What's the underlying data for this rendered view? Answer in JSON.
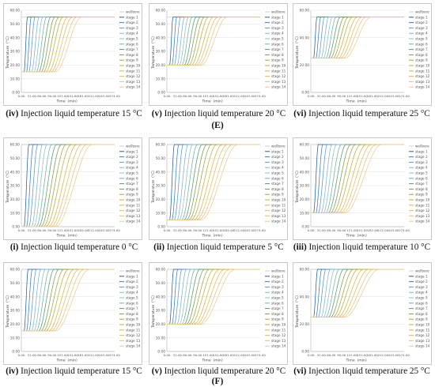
{
  "group_labels": [
    "(E)",
    "(F)"
  ],
  "colors": {
    "wellbore": "#cfcfcf",
    "stages": [
      "#1f5fa8",
      "#3a7dc7",
      "#5b97d0",
      "#7fb1d6",
      "#8cc0bf",
      "#6fb39a",
      "#4f9b73",
      "#7e9a4a",
      "#9fa63f",
      "#bfae3a",
      "#d8b443",
      "#e3bb5e",
      "#e8c377",
      "#eccb8d"
    ]
  },
  "chart_data": [
    {
      "id": "E-iv",
      "group": "E",
      "caption_num": "(iv)",
      "caption_text": " Injection liquid temperature 15 °C",
      "type": "line",
      "xlabel": "Time（min）",
      "ylabel": "Temperature（°C）",
      "ylim": [
        0,
        60
      ],
      "y_ticks": [
        "0.00",
        "10.00",
        "20.00",
        "30.00",
        "40.00",
        "50.00",
        "60.00"
      ],
      "x_ticks": [
        "0.00",
        "31.00",
        "60.00",
        "90.00",
        "121.00",
        "151.00",
        "181.00",
        "212.00",
        "243.00",
        "274.00"
      ],
      "series": [
        {
          "name": "wellbore"
        },
        {
          "name": "stage 1"
        },
        {
          "name": "stage 2"
        },
        {
          "name": "stage 3"
        },
        {
          "name": "stage 4"
        },
        {
          "name": "stage 5"
        },
        {
          "name": "stage 6"
        },
        {
          "name": "stage 7"
        },
        {
          "name": "stage 8"
        },
        {
          "name": "stage 9"
        },
        {
          "name": "stage 10"
        },
        {
          "name": "stage 11"
        },
        {
          "name": "stage 12"
        },
        {
          "name": "stage 13"
        },
        {
          "name": "stage 14"
        }
      ],
      "inj_temp": 15,
      "final_temp": 55,
      "stage_start_min": [
        8,
        15,
        22,
        30,
        37,
        44,
        51,
        58,
        65,
        72,
        80,
        87,
        94,
        101
      ],
      "stage_ramp_min": [
        10,
        14,
        18,
        22,
        26,
        30,
        35,
        40,
        45,
        50,
        56,
        62,
        68,
        75
      ]
    },
    {
      "id": "E-v",
      "group": "E",
      "caption_num": "(v)",
      "caption_text": " Injection liquid temperature 20 °C",
      "type": "line",
      "xlabel": "Time（min）",
      "ylabel": "Temperature（°C）",
      "ylim": [
        0,
        60
      ],
      "y_ticks": [
        "0.00",
        "10.00",
        "20.00",
        "30.00",
        "40.00",
        "50.00",
        "60.00"
      ],
      "x_ticks": [
        "0.00",
        "31.00",
        "60.00",
        "90.00",
        "121.00",
        "151.00",
        "181.00",
        "212.00",
        "243.00",
        "274.00"
      ],
      "series": [
        {
          "name": "wellbore"
        },
        {
          "name": "stage 1"
        },
        {
          "name": "stage 2"
        },
        {
          "name": "stage 3"
        },
        {
          "name": "stage 4"
        },
        {
          "name": "stage 5"
        },
        {
          "name": "stage 6"
        },
        {
          "name": "stage 7"
        },
        {
          "name": "stage 8"
        },
        {
          "name": "stage 9"
        },
        {
          "name": "stage 10"
        },
        {
          "name": "stage 11"
        },
        {
          "name": "stage 12"
        },
        {
          "name": "stage 13"
        },
        {
          "name": "stage 14"
        }
      ],
      "inj_temp": 20,
      "final_temp": 55,
      "stage_start_min": [
        8,
        15,
        22,
        30,
        37,
        44,
        51,
        58,
        65,
        72,
        80,
        87,
        94,
        101
      ],
      "stage_ramp_min": [
        10,
        14,
        18,
        22,
        26,
        30,
        35,
        40,
        45,
        50,
        56,
        62,
        68,
        75
      ]
    },
    {
      "id": "E-vi",
      "group": "E",
      "caption_num": "(vi)",
      "caption_text": " Injection liquid temperature 25 °C",
      "type": "line",
      "xlabel": "Time（min）",
      "ylabel": "Temperature（°C）",
      "ylim": [
        0,
        60
      ],
      "y_ticks": [
        "0.00",
        "20.00",
        "40.00",
        "60.00"
      ],
      "x_ticks": [
        "0.00",
        "31.00",
        "60.00",
        "90.00",
        "121.00",
        "151.00",
        "181.00",
        "212.00",
        "243.00",
        "274.00"
      ],
      "series": [
        {
          "name": "wellbore"
        },
        {
          "name": "stage 1"
        },
        {
          "name": "stage 2"
        },
        {
          "name": "stage 3"
        },
        {
          "name": "stage 4"
        },
        {
          "name": "stage 5"
        },
        {
          "name": "stage 6"
        },
        {
          "name": "stage 7"
        },
        {
          "name": "stage 8"
        },
        {
          "name": "stage 9"
        },
        {
          "name": "stage 10"
        },
        {
          "name": "stage 11"
        },
        {
          "name": "stage 12"
        },
        {
          "name": "stage 13"
        },
        {
          "name": "stage 14"
        }
      ],
      "inj_temp": 25,
      "final_temp": 55,
      "stage_start_min": [
        8,
        15,
        22,
        30,
        37,
        44,
        51,
        58,
        65,
        72,
        80,
        87,
        94,
        101
      ],
      "stage_ramp_min": [
        10,
        14,
        18,
        22,
        26,
        30,
        35,
        40,
        45,
        50,
        56,
        62,
        68,
        75
      ]
    },
    {
      "id": "F-i",
      "group": "F",
      "caption_num": "(i)",
      "caption_text": " Injection liquid temperature 0 °C",
      "type": "line",
      "xlabel": "Time（min）",
      "ylabel": "Temperature（°C）",
      "ylim": [
        0,
        60
      ],
      "y_ticks": [
        "0.00",
        "10.00",
        "20.00",
        "30.00",
        "40.00",
        "50.00",
        "60.00"
      ],
      "x_ticks": [
        "0.00",
        "31.00",
        "60.00",
        "90.00",
        "121.00",
        "151.00",
        "182.00",
        "212.00",
        "243.00",
        "274.00"
      ],
      "series": [
        {
          "name": "wellbore"
        },
        {
          "name": "stage 1"
        },
        {
          "name": "stage 2"
        },
        {
          "name": "stage 3"
        },
        {
          "name": "stage 4"
        },
        {
          "name": "stage 5"
        },
        {
          "name": "stage 6"
        },
        {
          "name": "stage 7"
        },
        {
          "name": "stage 8"
        },
        {
          "name": "stage 9"
        },
        {
          "name": "stage 10"
        },
        {
          "name": "stage 11"
        },
        {
          "name": "stage 12"
        },
        {
          "name": "stage 13"
        },
        {
          "name": "stage 14"
        }
      ],
      "inj_temp": 0,
      "final_temp": 60,
      "stage_start_min": [
        8,
        15,
        22,
        30,
        37,
        44,
        51,
        58,
        65,
        72,
        80,
        87,
        94,
        101
      ],
      "stage_ramp_min": [
        14,
        20,
        26,
        32,
        38,
        45,
        52,
        59,
        66,
        74,
        82,
        90,
        98,
        106
      ]
    },
    {
      "id": "F-ii",
      "group": "F",
      "caption_num": "(ii)",
      "caption_text": " Injection liquid temperature 5 °C",
      "type": "line",
      "xlabel": "Time（min）",
      "ylabel": "Temperature（°C）",
      "ylim": [
        0,
        60
      ],
      "y_ticks": [
        "0.00",
        "10.00",
        "20.00",
        "30.00",
        "40.00",
        "50.00",
        "60.00"
      ],
      "x_ticks": [
        "0.00",
        "31.00",
        "60.00",
        "90.00",
        "121.00",
        "151.00",
        "182.00",
        "212.00",
        "243.00",
        "274.00"
      ],
      "series": [
        {
          "name": "wellbore"
        },
        {
          "name": "stage 1"
        },
        {
          "name": "stage 2"
        },
        {
          "name": "stage 3"
        },
        {
          "name": "stage 4"
        },
        {
          "name": "stage 5"
        },
        {
          "name": "stage 6"
        },
        {
          "name": "stage 7"
        },
        {
          "name": "stage 8"
        },
        {
          "name": "stage 9"
        },
        {
          "name": "stage 10"
        },
        {
          "name": "stage 11"
        },
        {
          "name": "stage 12"
        },
        {
          "name": "stage 13"
        },
        {
          "name": "stage 14"
        }
      ],
      "inj_temp": 5,
      "final_temp": 60,
      "stage_start_min": [
        8,
        15,
        22,
        30,
        37,
        44,
        51,
        58,
        65,
        72,
        80,
        87,
        94,
        101
      ],
      "stage_ramp_min": [
        14,
        20,
        26,
        32,
        38,
        45,
        52,
        59,
        66,
        74,
        82,
        90,
        98,
        106
      ]
    },
    {
      "id": "F-iii",
      "group": "F",
      "caption_num": "(iii)",
      "caption_text": " Injection liquid temperature 10 °C",
      "type": "line",
      "xlabel": "Time（min）",
      "ylabel": "Temperature（°C）",
      "ylim": [
        0,
        60
      ],
      "y_ticks": [
        "0.00",
        "10.00",
        "20.00",
        "30.00",
        "40.00",
        "50.00",
        "60.00"
      ],
      "x_ticks": [
        "0.00",
        "31.00",
        "60.00",
        "90.00",
        "121.00",
        "151.00",
        "182.00",
        "212.00",
        "243.00",
        "274.00"
      ],
      "series": [
        {
          "name": "wellbore"
        },
        {
          "name": "stage 1"
        },
        {
          "name": "stage 2"
        },
        {
          "name": "stage 3"
        },
        {
          "name": "stage 4"
        },
        {
          "name": "stage 5"
        },
        {
          "name": "stage 6"
        },
        {
          "name": "stage 7"
        },
        {
          "name": "stage 8"
        },
        {
          "name": "stage 9"
        },
        {
          "name": "stage 10"
        },
        {
          "name": "stage 11"
        },
        {
          "name": "stage 12"
        },
        {
          "name": "stage 13"
        },
        {
          "name": "stage 14"
        }
      ],
      "inj_temp": 10,
      "final_temp": 60,
      "stage_start_min": [
        8,
        15,
        22,
        30,
        37,
        44,
        51,
        58,
        65,
        72,
        80,
        87,
        94,
        101
      ],
      "stage_ramp_min": [
        14,
        20,
        26,
        32,
        38,
        45,
        52,
        59,
        66,
        74,
        82,
        90,
        98,
        106
      ]
    },
    {
      "id": "F-iv",
      "group": "F",
      "caption_num": "(iv)",
      "caption_text": " Injection liquid temperature 15 °C",
      "type": "line",
      "xlabel": "Time（min）",
      "ylabel": "Temperature（°C）",
      "ylim": [
        0,
        60
      ],
      "y_ticks": [
        "0.00",
        "10.00",
        "20.00",
        "30.00",
        "40.00",
        "50.00",
        "60.00"
      ],
      "x_ticks": [
        "0.00",
        "31.00",
        "60.00",
        "90.00",
        "121.00",
        "151.00",
        "181.00",
        "212.00",
        "243.00",
        "274.00"
      ],
      "series": [
        {
          "name": "wellbore"
        },
        {
          "name": "stage 1"
        },
        {
          "name": "stage 2"
        },
        {
          "name": "stage 3"
        },
        {
          "name": "stage 4"
        },
        {
          "name": "stage 5"
        },
        {
          "name": "stage 6"
        },
        {
          "name": "stage 7"
        },
        {
          "name": "stage 8"
        },
        {
          "name": "stage 9"
        },
        {
          "name": "stage 10"
        },
        {
          "name": "stage 11"
        },
        {
          "name": "stage 12"
        },
        {
          "name": "stage 13"
        },
        {
          "name": "stage 14"
        }
      ],
      "inj_temp": 15,
      "final_temp": 60,
      "stage_start_min": [
        8,
        15,
        22,
        30,
        37,
        44,
        51,
        58,
        65,
        72,
        80,
        87,
        94,
        101
      ],
      "stage_ramp_min": [
        12,
        17,
        22,
        27,
        33,
        39,
        45,
        52,
        59,
        66,
        74,
        82,
        90,
        98
      ]
    },
    {
      "id": "F-v",
      "group": "F",
      "caption_num": "(v)",
      "caption_text": " Injection liquid temperature 20 °C",
      "type": "line",
      "xlabel": "Time（min）",
      "ylabel": "Temperature（°C）",
      "ylim": [
        0,
        60
      ],
      "y_ticks": [
        "0.00",
        "10.00",
        "20.00",
        "30.00",
        "40.00",
        "50.00",
        "60.00"
      ],
      "x_ticks": [
        "0.00",
        "31.00",
        "60.00",
        "90.00",
        "121.00",
        "151.00",
        "181.00",
        "212.00",
        "243.00",
        "274.00"
      ],
      "series": [
        {
          "name": "wellbore"
        },
        {
          "name": "stage 1"
        },
        {
          "name": "stage 2"
        },
        {
          "name": "stage 3"
        },
        {
          "name": "stage 4"
        },
        {
          "name": "stage 5"
        },
        {
          "name": "stage 6"
        },
        {
          "name": "stage 7"
        },
        {
          "name": "stage 8"
        },
        {
          "name": "stage 9"
        },
        {
          "name": "stage 10"
        },
        {
          "name": "stage 11"
        },
        {
          "name": "stage 12"
        },
        {
          "name": "stage 13"
        },
        {
          "name": "stage 14"
        }
      ],
      "inj_temp": 20,
      "final_temp": 60,
      "stage_start_min": [
        8,
        15,
        22,
        30,
        37,
        44,
        51,
        58,
        65,
        72,
        80,
        87,
        94,
        101
      ],
      "stage_ramp_min": [
        12,
        17,
        22,
        27,
        33,
        39,
        45,
        52,
        59,
        66,
        74,
        82,
        90,
        98
      ]
    },
    {
      "id": "F-vi",
      "group": "F",
      "caption_num": "(vi)",
      "caption_text": " Injection liquid temperature 25 °C",
      "type": "line",
      "xlabel": "Time（min）",
      "ylabel": "Temperature（°C）",
      "ylim": [
        0,
        60
      ],
      "y_ticks": [
        "0.00",
        "20.00",
        "40.00",
        "60.00"
      ],
      "x_ticks": [
        "0.00",
        "31.00",
        "60.00",
        "90.00",
        "121.00",
        "151.00",
        "181.00",
        "212.00",
        "243.00",
        "274.00"
      ],
      "series": [
        {
          "name": "wellbore"
        },
        {
          "name": "stage 1"
        },
        {
          "name": "stage 2"
        },
        {
          "name": "stage 3"
        },
        {
          "name": "stage 4"
        },
        {
          "name": "stage 5"
        },
        {
          "name": "stage 6"
        },
        {
          "name": "stage 7"
        },
        {
          "name": "stage 8"
        },
        {
          "name": "stage 9"
        },
        {
          "name": "stage 10"
        },
        {
          "name": "stage 11"
        },
        {
          "name": "stage 12"
        },
        {
          "name": "stage 13"
        },
        {
          "name": "stage 14"
        }
      ],
      "inj_temp": 25,
      "final_temp": 60,
      "stage_start_min": [
        8,
        15,
        22,
        30,
        37,
        44,
        51,
        58,
        65,
        72,
        80,
        87,
        94,
        101
      ],
      "stage_ramp_min": [
        12,
        17,
        22,
        27,
        33,
        39,
        45,
        52,
        59,
        66,
        74,
        82,
        90,
        98
      ]
    }
  ]
}
